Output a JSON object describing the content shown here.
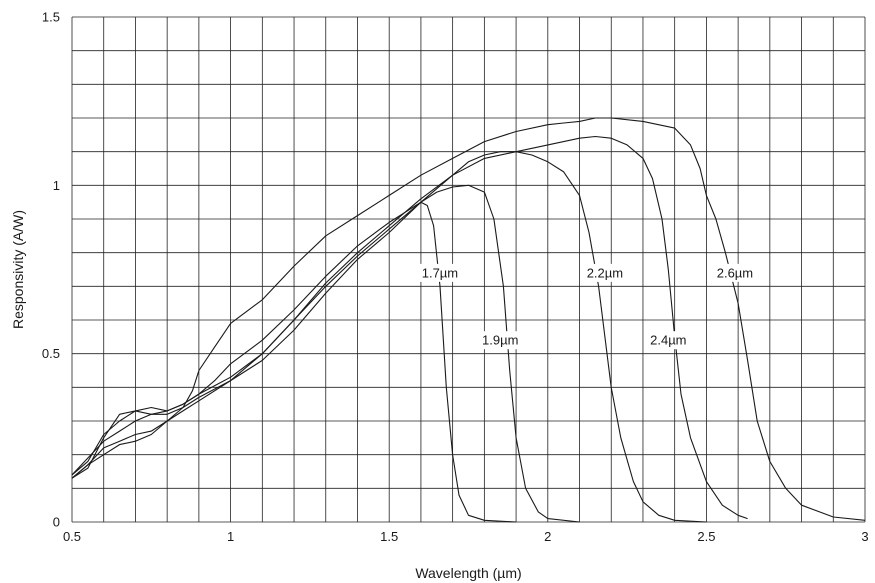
{
  "chart_data": {
    "type": "line",
    "title": "",
    "xlabel": "Wavelength (µm)",
    "ylabel": "Responsivity (A/W)",
    "xlim": [
      0.5,
      3.0
    ],
    "ylim": [
      0,
      1.5
    ],
    "x_ticks": [
      0.5,
      1.0,
      1.5,
      2.0,
      2.5,
      3.0
    ],
    "x_tick_labels": [
      "0.5",
      "1",
      "1.5",
      "2",
      "2.5",
      "3"
    ],
    "y_ticks": [
      0,
      0.5,
      1.0,
      1.5
    ],
    "y_tick_labels": [
      "0",
      "0.5",
      "1",
      "1.5"
    ],
    "grid": true,
    "grid_x_step": 0.1,
    "grid_y_step": 0.1,
    "legend": "none",
    "series": [
      {
        "label": "1.7µm",
        "label_at": [
          1.66,
          0.74
        ],
        "points": [
          [
            0.5,
            0.14
          ],
          [
            0.55,
            0.18
          ],
          [
            0.6,
            0.26
          ],
          [
            0.65,
            0.3
          ],
          [
            0.7,
            0.33
          ],
          [
            0.75,
            0.34
          ],
          [
            0.8,
            0.33
          ],
          [
            0.85,
            0.35
          ],
          [
            0.9,
            0.38
          ],
          [
            0.95,
            0.42
          ],
          [
            1.0,
            0.47
          ],
          [
            1.1,
            0.54
          ],
          [
            1.2,
            0.63
          ],
          [
            1.3,
            0.73
          ],
          [
            1.4,
            0.82
          ],
          [
            1.5,
            0.89
          ],
          [
            1.55,
            0.92
          ],
          [
            1.6,
            0.95
          ],
          [
            1.62,
            0.94
          ],
          [
            1.64,
            0.88
          ],
          [
            1.66,
            0.7
          ],
          [
            1.68,
            0.4
          ],
          [
            1.7,
            0.2
          ],
          [
            1.72,
            0.08
          ],
          [
            1.75,
            0.02
          ],
          [
            1.8,
            0.005
          ],
          [
            1.9,
            0.0
          ]
        ]
      },
      {
        "label": "1.9µm",
        "label_at": [
          1.85,
          0.54
        ],
        "points": [
          [
            0.5,
            0.13
          ],
          [
            0.55,
            0.16
          ],
          [
            0.6,
            0.25
          ],
          [
            0.65,
            0.32
          ],
          [
            0.7,
            0.33
          ],
          [
            0.75,
            0.32
          ],
          [
            0.8,
            0.32
          ],
          [
            0.85,
            0.34
          ],
          [
            0.9,
            0.37
          ],
          [
            1.0,
            0.42
          ],
          [
            1.1,
            0.5
          ],
          [
            1.2,
            0.6
          ],
          [
            1.3,
            0.7
          ],
          [
            1.4,
            0.79
          ],
          [
            1.5,
            0.87
          ],
          [
            1.6,
            0.95
          ],
          [
            1.65,
            0.98
          ],
          [
            1.7,
            0.995
          ],
          [
            1.75,
            1.0
          ],
          [
            1.8,
            0.98
          ],
          [
            1.83,
            0.9
          ],
          [
            1.86,
            0.7
          ],
          [
            1.88,
            0.45
          ],
          [
            1.9,
            0.25
          ],
          [
            1.93,
            0.1
          ],
          [
            1.97,
            0.03
          ],
          [
            2.0,
            0.01
          ],
          [
            2.1,
            0.0
          ]
        ]
      },
      {
        "label": "2.2µm",
        "label_at": [
          2.18,
          0.74
        ],
        "points": [
          [
            0.5,
            0.14
          ],
          [
            0.55,
            0.19
          ],
          [
            0.6,
            0.24
          ],
          [
            0.65,
            0.27
          ],
          [
            0.7,
            0.3
          ],
          [
            0.75,
            0.32
          ],
          [
            0.8,
            0.33
          ],
          [
            0.85,
            0.35
          ],
          [
            0.9,
            0.38
          ],
          [
            1.0,
            0.43
          ],
          [
            1.1,
            0.5
          ],
          [
            1.2,
            0.6
          ],
          [
            1.3,
            0.71
          ],
          [
            1.4,
            0.8
          ],
          [
            1.5,
            0.88
          ],
          [
            1.6,
            0.96
          ],
          [
            1.7,
            1.03
          ],
          [
            1.75,
            1.07
          ],
          [
            1.8,
            1.09
          ],
          [
            1.85,
            1.1
          ],
          [
            1.9,
            1.1
          ],
          [
            1.95,
            1.09
          ],
          [
            2.0,
            1.07
          ],
          [
            2.05,
            1.04
          ],
          [
            2.1,
            0.97
          ],
          [
            2.13,
            0.86
          ],
          [
            2.16,
            0.7
          ],
          [
            2.18,
            0.55
          ],
          [
            2.2,
            0.4
          ],
          [
            2.23,
            0.25
          ],
          [
            2.27,
            0.12
          ],
          [
            2.3,
            0.06
          ],
          [
            2.35,
            0.02
          ],
          [
            2.4,
            0.005
          ],
          [
            2.5,
            0.0
          ]
        ]
      },
      {
        "label": "2.4µm",
        "label_at": [
          2.38,
          0.54
        ],
        "points": [
          [
            0.5,
            0.13
          ],
          [
            0.55,
            0.17
          ],
          [
            0.6,
            0.22
          ],
          [
            0.65,
            0.24
          ],
          [
            0.7,
            0.26
          ],
          [
            0.75,
            0.27
          ],
          [
            0.8,
            0.3
          ],
          [
            0.85,
            0.33
          ],
          [
            0.9,
            0.36
          ],
          [
            1.0,
            0.42
          ],
          [
            1.1,
            0.48
          ],
          [
            1.2,
            0.57
          ],
          [
            1.3,
            0.68
          ],
          [
            1.4,
            0.78
          ],
          [
            1.5,
            0.86
          ],
          [
            1.6,
            0.95
          ],
          [
            1.7,
            1.03
          ],
          [
            1.8,
            1.08
          ],
          [
            1.9,
            1.1
          ],
          [
            2.0,
            1.12
          ],
          [
            2.05,
            1.13
          ],
          [
            2.1,
            1.14
          ],
          [
            2.15,
            1.145
          ],
          [
            2.2,
            1.14
          ],
          [
            2.25,
            1.12
          ],
          [
            2.3,
            1.08
          ],
          [
            2.33,
            1.02
          ],
          [
            2.36,
            0.9
          ],
          [
            2.38,
            0.75
          ],
          [
            2.4,
            0.55
          ],
          [
            2.42,
            0.38
          ],
          [
            2.45,
            0.25
          ],
          [
            2.5,
            0.12
          ],
          [
            2.55,
            0.05
          ],
          [
            2.6,
            0.02
          ],
          [
            2.63,
            0.01
          ]
        ]
      },
      {
        "label": "2.6µm",
        "label_at": [
          2.59,
          0.74
        ],
        "points": [
          [
            0.5,
            0.13
          ],
          [
            0.55,
            0.17
          ],
          [
            0.6,
            0.2
          ],
          [
            0.65,
            0.23
          ],
          [
            0.7,
            0.24
          ],
          [
            0.75,
            0.26
          ],
          [
            0.8,
            0.3
          ],
          [
            0.85,
            0.34
          ],
          [
            0.88,
            0.39
          ],
          [
            0.9,
            0.45
          ],
          [
            0.95,
            0.52
          ],
          [
            1.0,
            0.59
          ],
          [
            1.1,
            0.66
          ],
          [
            1.2,
            0.76
          ],
          [
            1.3,
            0.85
          ],
          [
            1.4,
            0.91
          ],
          [
            1.5,
            0.97
          ],
          [
            1.6,
            1.03
          ],
          [
            1.7,
            1.08
          ],
          [
            1.8,
            1.13
          ],
          [
            1.9,
            1.16
          ],
          [
            2.0,
            1.18
          ],
          [
            2.05,
            1.185
          ],
          [
            2.1,
            1.19
          ],
          [
            2.15,
            1.2
          ],
          [
            2.2,
            1.2
          ],
          [
            2.3,
            1.19
          ],
          [
            2.4,
            1.17
          ],
          [
            2.45,
            1.12
          ],
          [
            2.48,
            1.05
          ],
          [
            2.5,
            0.97
          ],
          [
            2.53,
            0.9
          ],
          [
            2.56,
            0.8
          ],
          [
            2.6,
            0.65
          ],
          [
            2.63,
            0.48
          ],
          [
            2.66,
            0.3
          ],
          [
            2.7,
            0.18
          ],
          [
            2.75,
            0.1
          ],
          [
            2.8,
            0.05
          ],
          [
            2.9,
            0.015
          ],
          [
            3.0,
            0.005
          ]
        ]
      }
    ]
  }
}
